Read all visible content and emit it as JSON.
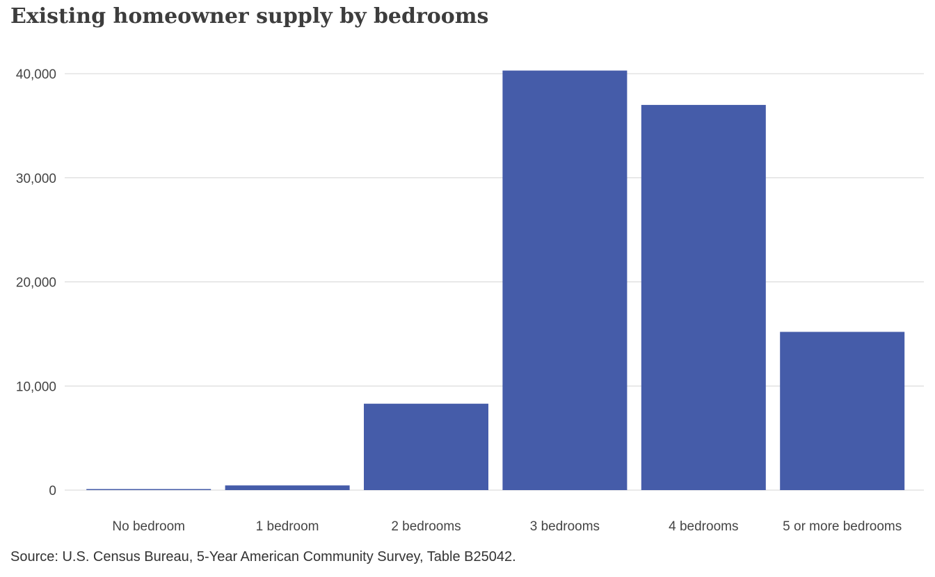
{
  "chart_data": {
    "type": "bar",
    "title": "Existing homeowner supply by bedrooms",
    "source": "Source: U.S. Census Bureau, 5-Year  American Community Survey, Table B25042.",
    "categories": [
      "No bedroom",
      "1 bedroom",
      "2 bedrooms",
      "3 bedrooms",
      "4 bedrooms",
      "5 or more bedrooms"
    ],
    "values": [
      100,
      450,
      8300,
      40300,
      37000,
      15200
    ],
    "y_ticks": [
      0,
      10000,
      20000,
      30000,
      40000
    ],
    "y_tick_labels": [
      "0",
      "10,000",
      "20,000",
      "30,000",
      "40,000"
    ],
    "ylim": [
      0,
      40000
    ],
    "grid": true,
    "bar_color": "#455ca9",
    "grid_color": "#d4d4d4",
    "xlabel": "",
    "ylabel": ""
  }
}
